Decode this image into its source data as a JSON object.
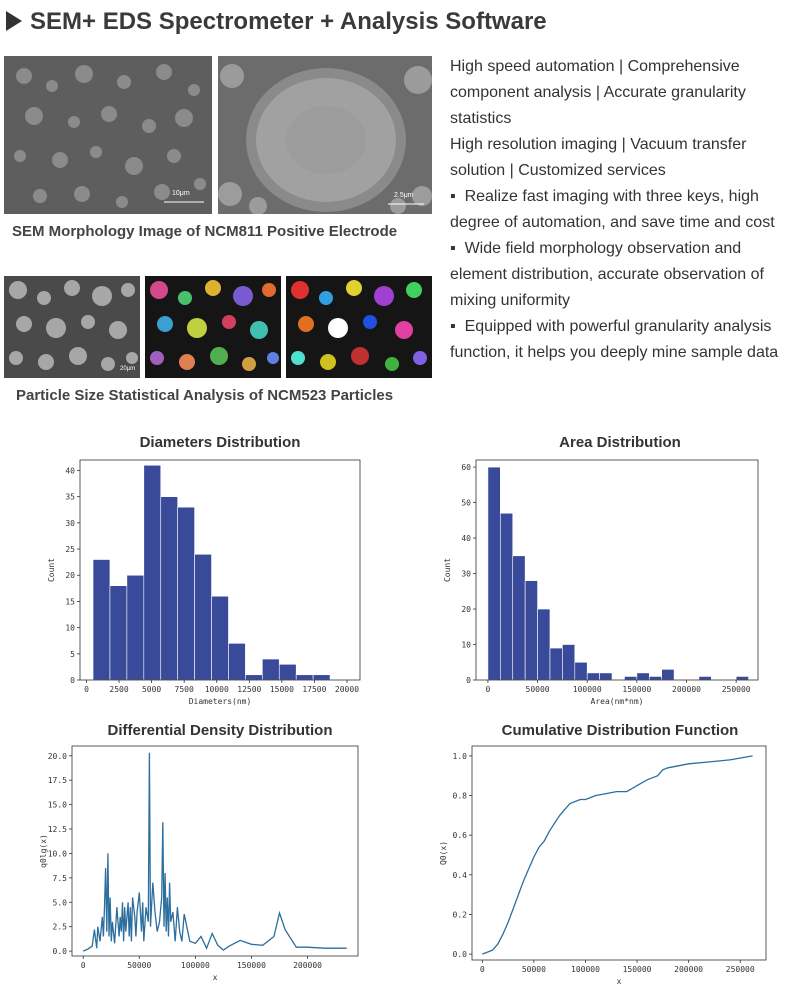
{
  "header": {
    "title": "SEM+ EDS Spectrometer + Analysis Software"
  },
  "images": {
    "sem_caption": "SEM Morphology Image of NCM811 Positive Electrode",
    "particle_caption": "Particle Size Statistical Analysis of NCM523 Particles",
    "scale_1": "10μm",
    "scale_2": "2.5μm",
    "scale_3": "20μm"
  },
  "features": {
    "intro_1": "High speed automation | Comprehensive component analysis | Accurate granularity statistics",
    "intro_2": "High resolution imaging | Vacuum transfer solution | Customized services",
    "bullets": [
      "Realize fast imaging with three keys, high degree of automation, and save time and cost",
      "Wide field morphology observation and element distribution, accurate observation of mixing uniformity",
      "Equipped with powerful granularity analysis function, it helps you deeply mine sample data"
    ]
  },
  "colors": {
    "bar": "#3a4a9a",
    "line": "#2c6e9e",
    "axis": "#333333"
  },
  "chart_data": [
    {
      "type": "bar",
      "title": "Diameters Distribution",
      "xlabel": "Diameters(nm)",
      "ylabel": "Count",
      "xlim": [
        -500,
        21000
      ],
      "ylim": [
        0,
        42
      ],
      "xticks": [
        0,
        2500,
        5000,
        7500,
        10000,
        12500,
        15000,
        17500,
        20000
      ],
      "yticks": [
        0,
        5,
        10,
        15,
        20,
        25,
        30,
        35,
        40
      ],
      "bin_start": 500,
      "bin_width": 1300,
      "values": [
        23,
        18,
        20,
        41,
        35,
        33,
        24,
        16,
        7,
        1,
        4,
        3,
        1,
        1
      ]
    },
    {
      "type": "bar",
      "title": "Area Distribution",
      "xlabel": "Area(nm*nm)",
      "ylabel": "Count",
      "xlim": [
        -12000,
        272000
      ],
      "ylim": [
        0,
        62
      ],
      "xticks": [
        0,
        50000,
        100000,
        150000,
        200000,
        250000
      ],
      "yticks": [
        0,
        10,
        20,
        30,
        40,
        50,
        60
      ],
      "bin_start": 0,
      "bin_width": 12500,
      "values": [
        60,
        47,
        35,
        28,
        20,
        9,
        10,
        5,
        2,
        2,
        0,
        1,
        2,
        1,
        3,
        0,
        0,
        1,
        0,
        0,
        1
      ]
    },
    {
      "type": "line",
      "title": "Differential Density Distribution",
      "xlabel": "x",
      "ylabel": "q0lg(x)",
      "xlim": [
        -10000,
        245000
      ],
      "ylim": [
        -0.5,
        21.0
      ],
      "xticks": [
        0,
        50000,
        100000,
        150000,
        200000
      ],
      "yticks": [
        0.0,
        2.5,
        5.0,
        7.5,
        10.0,
        12.5,
        15.0,
        17.5,
        20.0
      ],
      "ytick_labels": [
        "0.0",
        "2.5",
        "5.0",
        "7.5",
        "10.0",
        "12.5",
        "15.0",
        "17.5",
        "20.0"
      ],
      "x": [
        0,
        4000,
        8000,
        10000,
        12000,
        13000,
        15000,
        17000,
        18000,
        19000,
        20000,
        21000,
        22000,
        23000,
        24000,
        25000,
        26000,
        28000,
        30000,
        32000,
        33000,
        34000,
        35000,
        36000,
        37000,
        38000,
        40000,
        41000,
        42000,
        43000,
        44000,
        46000,
        47000,
        48000,
        50000,
        52000,
        53000,
        54000,
        56000,
        58000,
        59000,
        60000,
        62000,
        64000,
        66000,
        68000,
        70000,
        71000,
        72000,
        73000,
        74000,
        75000,
        76000,
        77000,
        78000,
        80000,
        82000,
        84000,
        86000,
        88000,
        90000,
        95000,
        100000,
        105000,
        110000,
        115000,
        120000,
        125000,
        130000,
        140000,
        150000,
        160000,
        170000,
        175000,
        180000,
        190000,
        200000,
        215000,
        235000
      ],
      "y": [
        0.0,
        0.2,
        0.5,
        2.2,
        0.3,
        2.5,
        1.0,
        3.5,
        1.5,
        4.5,
        8.5,
        2.0,
        10.0,
        1.5,
        5.5,
        1.0,
        3.0,
        0.8,
        4.5,
        1.5,
        3.5,
        2.0,
        5.0,
        1.0,
        4.5,
        2.0,
        5.0,
        1.5,
        4.5,
        1.0,
        5.5,
        3.5,
        1.5,
        4.0,
        6.0,
        2.0,
        5.0,
        1.0,
        4.5,
        3.0,
        20.3,
        2.5,
        7.0,
        4.0,
        2.0,
        3.0,
        5.5,
        13.2,
        2.5,
        8.0,
        2.0,
        5.5,
        1.5,
        7.0,
        3.0,
        4.0,
        1.0,
        4.5,
        2.0,
        1.0,
        3.8,
        1.0,
        0.8,
        1.5,
        0.3,
        1.8,
        0.6,
        0.1,
        0.5,
        1.1,
        0.7,
        0.6,
        1.5,
        3.9,
        2.2,
        0.4,
        0.4,
        0.3,
        0.3
      ]
    },
    {
      "type": "line",
      "title": "Cumulative Distribution Function",
      "xlabel": "x",
      "ylabel": "Q0(x)",
      "xlim": [
        -10000,
        275000
      ],
      "ylim": [
        -0.03,
        1.05
      ],
      "xticks": [
        0,
        50000,
        100000,
        150000,
        200000,
        250000
      ],
      "yticks": [
        0.0,
        0.2,
        0.4,
        0.6,
        0.8,
        1.0
      ],
      "ytick_labels": [
        "0.0",
        "0.2",
        "0.4",
        "0.6",
        "0.8",
        "1.0"
      ],
      "x": [
        0,
        5000,
        10000,
        15000,
        20000,
        25000,
        30000,
        35000,
        40000,
        45000,
        50000,
        55000,
        60000,
        65000,
        70000,
        75000,
        80000,
        85000,
        90000,
        95000,
        100000,
        110000,
        120000,
        130000,
        140000,
        150000,
        160000,
        170000,
        175000,
        180000,
        200000,
        220000,
        240000,
        262000
      ],
      "y": [
        0.0,
        0.01,
        0.02,
        0.05,
        0.1,
        0.16,
        0.23,
        0.3,
        0.37,
        0.43,
        0.49,
        0.54,
        0.57,
        0.62,
        0.66,
        0.7,
        0.73,
        0.76,
        0.77,
        0.78,
        0.78,
        0.8,
        0.81,
        0.82,
        0.82,
        0.85,
        0.88,
        0.9,
        0.93,
        0.94,
        0.96,
        0.97,
        0.98,
        1.0
      ]
    }
  ]
}
